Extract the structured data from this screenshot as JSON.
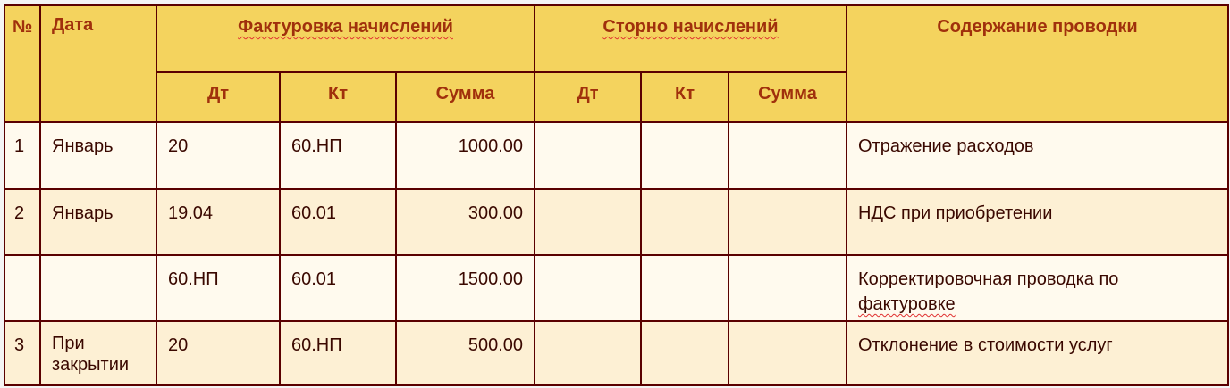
{
  "header": {
    "num": "№",
    "date": "Дата",
    "invoice": "Фактуровка начислений",
    "storno": "Сторно начислений",
    "content": "Содержание проводки",
    "dt": "Дт",
    "kt": "Кт",
    "sum": "Сумма"
  },
  "rows": [
    {
      "num": "1",
      "date": "Январь",
      "f_dt": "20",
      "f_kt": "60.НП",
      "f_sum": "1000.00",
      "s_dt": "",
      "s_kt": "",
      "s_sum": "",
      "content": "Отражение расходов"
    },
    {
      "num": "2",
      "date": "Январь",
      "f_dt": "19.04",
      "f_kt": "60.01",
      "f_sum": "300.00",
      "s_dt": "",
      "s_kt": "",
      "s_sum": "",
      "content": "НДС при приобретении"
    },
    {
      "num": "",
      "date": "",
      "f_dt": "60.НП",
      "f_kt": "60.01",
      "f_sum": "1500.00",
      "s_dt": "",
      "s_kt": "",
      "s_sum": "",
      "content": "Корректировочная проводка по ",
      "content_spell": "фактуровке"
    },
    {
      "num": "3",
      "date": "При закрытии",
      "f_dt": "20",
      "f_kt": "60.НП",
      "f_sum": "500.00",
      "s_dt": "",
      "s_kt": "",
      "s_sum": "",
      "content": "Отклонение в стоимости услуг"
    }
  ]
}
